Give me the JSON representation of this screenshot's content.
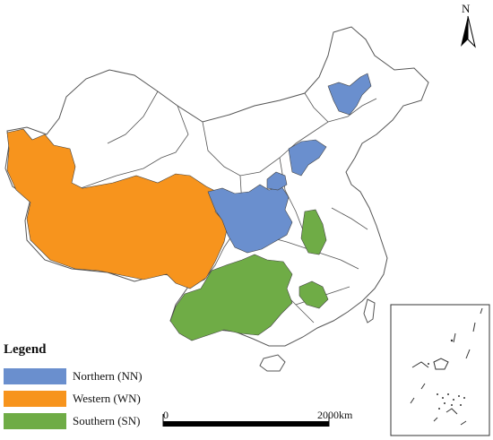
{
  "north_arrow": {
    "label": "N"
  },
  "legend": {
    "title": "Legend",
    "items": [
      {
        "label": "Northern (NN)",
        "color": "#6a8fce"
      },
      {
        "label": "Western (WN)",
        "color": "#f7941d"
      },
      {
        "label": "Southern (SN)",
        "color": "#6fac46"
      }
    ]
  },
  "scale_bar": {
    "start_label": "0",
    "end_label": "2000km"
  },
  "colors": {
    "boundary": "#555555",
    "background": "#ffffff"
  }
}
